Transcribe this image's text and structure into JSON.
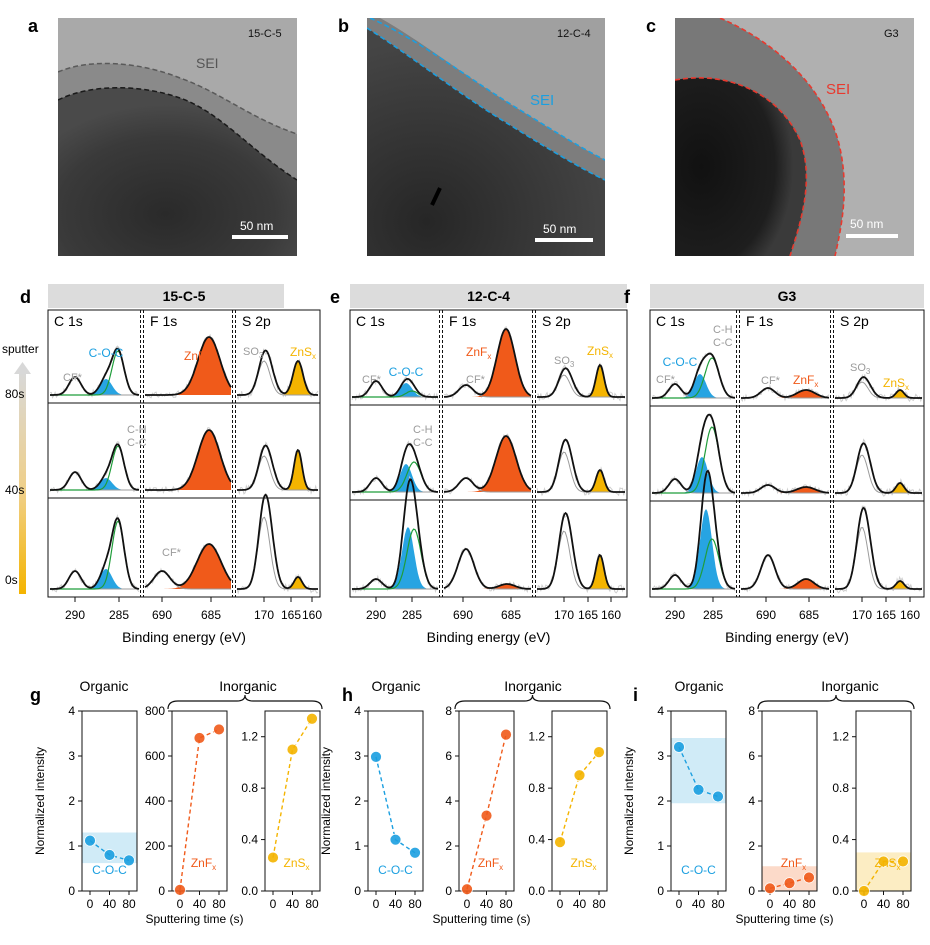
{
  "colors": {
    "ether": "#1b9fe0",
    "ether_light": "#c8e7f6",
    "fluoride": "#f05a1a",
    "fluoride_light": "#fbd3bf",
    "sulfide": "#f4b400",
    "sulfide_light": "#fbeab8",
    "grey": "#9b9b9b",
    "green": "#1f9d3a",
    "header_bg": "#dcdcdc"
  },
  "tem": [
    {
      "panel": "a",
      "sample": "15-C-5",
      "sei_label": "SEI",
      "scale_bar": "50 nm"
    },
    {
      "panel": "b",
      "sample": "12-C-4",
      "sei_label": "SEI",
      "scale_bar": "50 nm"
    },
    {
      "panel": "c",
      "sample": "G3",
      "sei_label": "SEI",
      "scale_bar": "50 nm"
    }
  ],
  "xps": {
    "sputter_label": "sputter",
    "time_labels": [
      "80s",
      "40s",
      "0s"
    ],
    "x_axis_label": "Binding energy (eV)",
    "core_levels": [
      "C 1s",
      "F 1s",
      "S 2p"
    ],
    "c_ticks": [
      "290",
      "285"
    ],
    "f_ticks": [
      "690",
      "685"
    ],
    "s_ticks": [
      "170",
      "165",
      "160"
    ],
    "panels": [
      {
        "panel": "d",
        "sample": "15-C-5",
        "labels": {
          "cf_c": "CF*",
          "coc": "C-O-C",
          "ch": "C-H",
          "cc": "C-C",
          "znf": "ZnF",
          "cf_f": "CF*",
          "so": "SO",
          "zns": "ZnS",
          "sub_x": "x",
          "sub_3": "3"
        }
      },
      {
        "panel": "e",
        "sample": "12-C-4",
        "labels": {
          "cf_c": "CF*",
          "coc": "C-O-C",
          "ch": "C-H",
          "cc": "C-C",
          "znf": "ZnF",
          "cf_f": "CF*",
          "so": "SO",
          "zns": "ZnS",
          "sub_x": "x",
          "sub_3": "3"
        }
      },
      {
        "panel": "f",
        "sample": "G3",
        "labels": {
          "cf_c": "CF*",
          "coc": "C-O-C",
          "ch": "C-H",
          "cc": "C-C",
          "znf": "ZnF",
          "cf_f": "CF*",
          "so": "SO",
          "zns": "ZnS",
          "sub_x": "x",
          "sub_3": "3"
        }
      }
    ]
  },
  "chart_data": [
    {
      "panel": "g",
      "type": "line",
      "group": "Organic",
      "title": "Organic",
      "label": "C-O-C",
      "series_color": "ether",
      "x": [
        0,
        40,
        80
      ],
      "values": [
        1.12,
        0.8,
        0.68
      ],
      "ylim": [
        0,
        4
      ],
      "yticks": [
        "0",
        "1",
        "2",
        "3",
        "4"
      ],
      "xticks": [
        "0",
        "40",
        "80"
      ],
      "ylabel": "Normalized intensity",
      "xlabel": "",
      "band": [
        0.62,
        1.3
      ]
    },
    {
      "panel": "g",
      "type": "line",
      "group": "Inorganic",
      "title": "Inorganic",
      "label": "ZnF",
      "label_sub": "x",
      "series_color": "fluoride",
      "x": [
        0,
        40,
        80
      ],
      "values": [
        5,
        680,
        718
      ],
      "ylim": [
        0,
        800
      ],
      "yticks": [
        "0",
        "200",
        "400",
        "600",
        "800"
      ],
      "xticks": [
        "0",
        "40",
        "80"
      ],
      "ylabel": "",
      "xlabel": "Sputtering time (s)"
    },
    {
      "panel": "g",
      "type": "line",
      "group": "Inorganic",
      "label": "ZnS",
      "label_sub": "x",
      "series_color": "sulfide",
      "x": [
        0,
        40,
        80
      ],
      "values": [
        0.26,
        1.1,
        1.34
      ],
      "ylim": [
        0,
        1.4
      ],
      "yticks": [
        "0.0",
        "0.4",
        "0.8",
        "1.2"
      ],
      "xticks": [
        "0",
        "40",
        "80"
      ],
      "ylabel": "",
      "xlabel": ""
    },
    {
      "panel": "h",
      "type": "line",
      "group": "Organic",
      "title": "Organic",
      "label": "C-O-C",
      "series_color": "ether",
      "x": [
        0,
        40,
        80
      ],
      "values": [
        2.98,
        1.14,
        0.85
      ],
      "ylim": [
        0,
        4
      ],
      "yticks": [
        "0",
        "1",
        "2",
        "3",
        "4"
      ],
      "xticks": [
        "0",
        "40",
        "80"
      ],
      "ylabel": "Normalized intensity",
      "xlabel": ""
    },
    {
      "panel": "h",
      "type": "line",
      "group": "Inorganic",
      "title": "Inorganic",
      "label": "ZnF",
      "label_sub": "x",
      "series_color": "fluoride",
      "x": [
        0,
        40,
        80
      ],
      "values": [
        0.08,
        3.35,
        6.95
      ],
      "ylim": [
        0,
        8
      ],
      "yticks": [
        "0",
        "2",
        "4",
        "6",
        "8"
      ],
      "xticks": [
        "0",
        "40",
        "80"
      ],
      "ylabel": "",
      "xlabel": "Sputtering time (s)"
    },
    {
      "panel": "h",
      "type": "line",
      "group": "Inorganic",
      "label": "ZnS",
      "label_sub": "x",
      "series_color": "sulfide",
      "x": [
        0,
        40,
        80
      ],
      "values": [
        0.38,
        0.9,
        1.08
      ],
      "ylim": [
        0,
        1.4
      ],
      "yticks": [
        "0.0",
        "0.4",
        "0.8",
        "1.2"
      ],
      "xticks": [
        "0",
        "40",
        "80"
      ],
      "ylabel": "",
      "xlabel": ""
    },
    {
      "panel": "i",
      "type": "line",
      "group": "Organic",
      "title": "Organic",
      "label": "C-O-C",
      "series_color": "ether",
      "x": [
        0,
        40,
        80
      ],
      "values": [
        3.2,
        2.25,
        2.1
      ],
      "ylim": [
        0,
        4
      ],
      "yticks": [
        "0",
        "1",
        "2",
        "3",
        "4"
      ],
      "xticks": [
        "0",
        "40",
        "80"
      ],
      "ylabel": "Normalized intensity",
      "xlabel": "",
      "band": [
        1.95,
        3.4
      ]
    },
    {
      "panel": "i",
      "type": "line",
      "group": "Inorganic",
      "title": "Inorganic",
      "label": "ZnF",
      "label_sub": "x",
      "series_color": "fluoride",
      "x": [
        0,
        40,
        80
      ],
      "values": [
        0.12,
        0.35,
        0.6
      ],
      "ylim": [
        0,
        8
      ],
      "yticks": [
        "0",
        "2",
        "4",
        "6",
        "8"
      ],
      "xticks": [
        "0",
        "40",
        "80"
      ],
      "ylabel": "",
      "xlabel": "Sputtering time (s)",
      "band": [
        0,
        1.1
      ]
    },
    {
      "panel": "i",
      "type": "line",
      "group": "Inorganic",
      "label": "ZnS",
      "label_sub": "x",
      "series_color": "sulfide",
      "x": [
        0,
        40,
        80
      ],
      "values": [
        0.0,
        0.23,
        0.23
      ],
      "ylim": [
        0,
        1.4
      ],
      "yticks": [
        "0.0",
        "0.4",
        "0.8",
        "1.2"
      ],
      "xticks": [
        "0",
        "40",
        "80"
      ],
      "ylabel": "",
      "xlabel": "",
      "band": [
        0,
        0.3
      ]
    }
  ]
}
